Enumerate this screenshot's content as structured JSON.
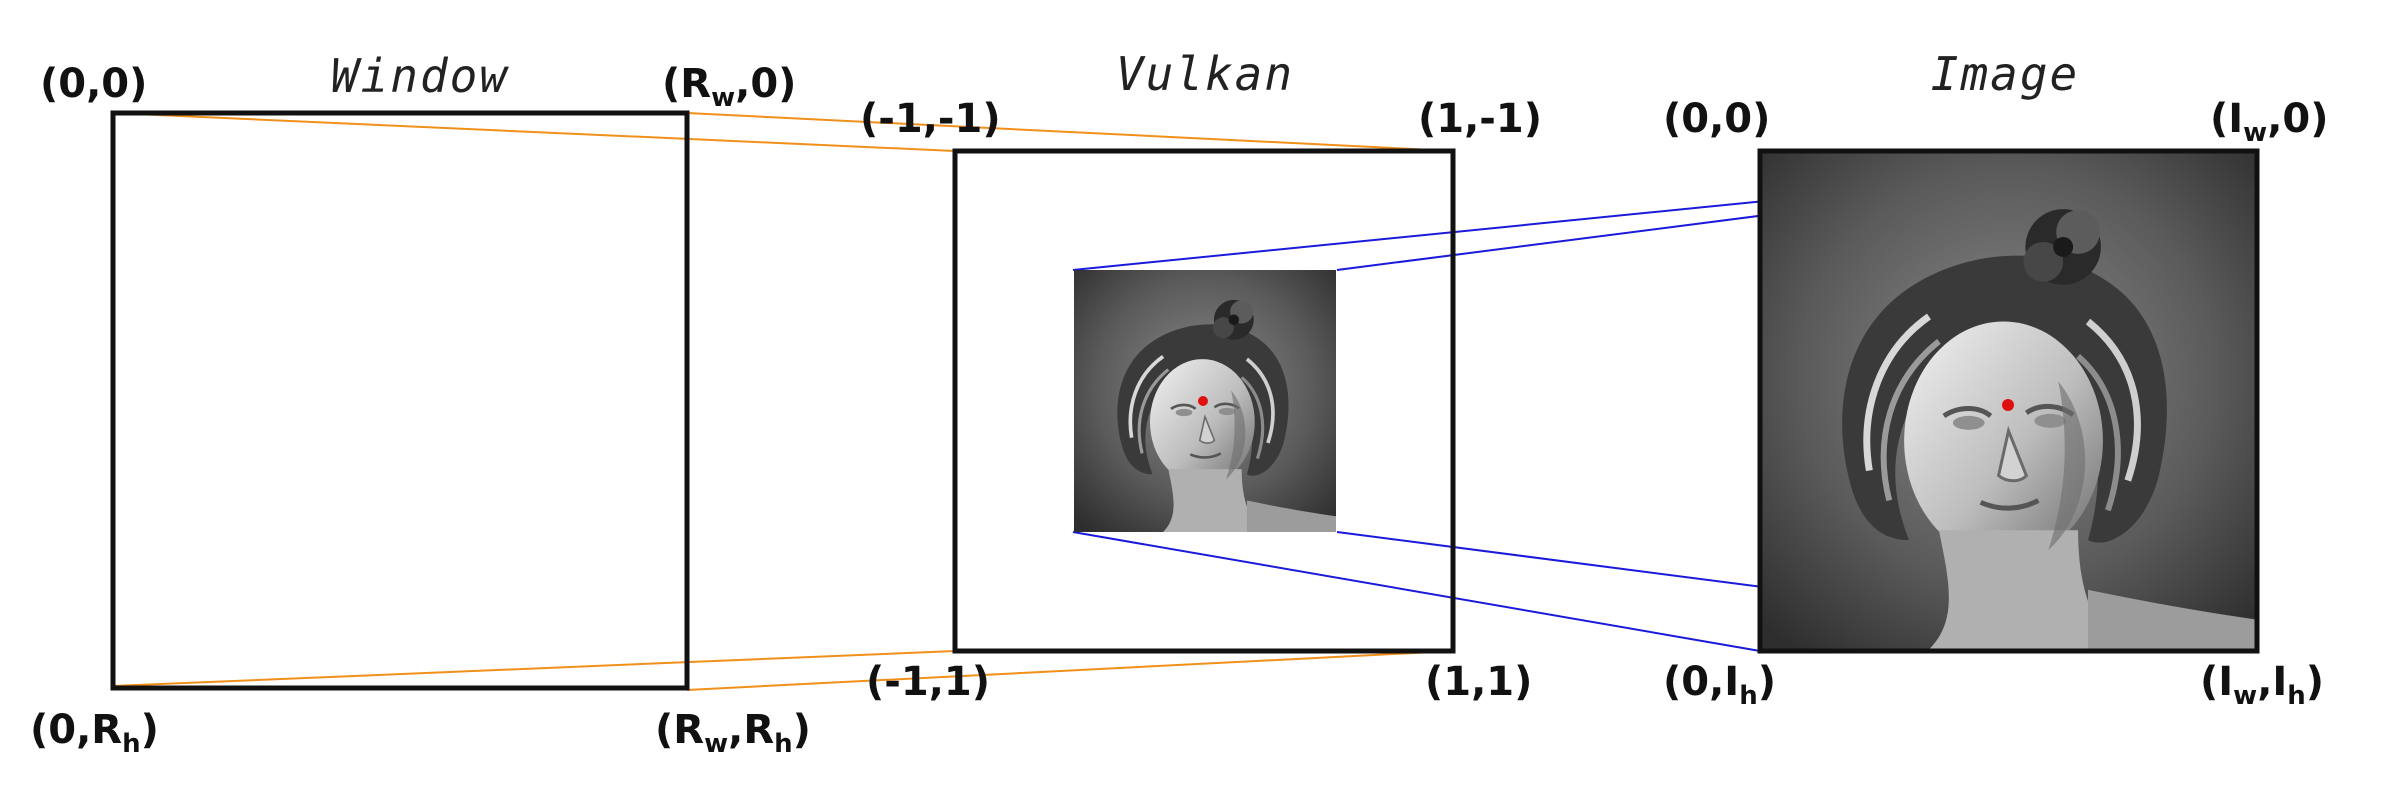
{
  "titles": {
    "window": "Window",
    "vulkan": "Vulkan",
    "image": "Image"
  },
  "window_labels": {
    "top_left": "(0,0)",
    "top_right": {
      "a": "(R",
      "b": "w",
      "c": ",0)"
    },
    "bottom_left": {
      "a": "(0,R",
      "b": "h",
      "c": ")"
    },
    "bottom_right": {
      "a": "(R",
      "b": "w",
      "c": ",R",
      "d": "h",
      "e": ")"
    }
  },
  "vulkan_labels": {
    "top_left": "(-1,-1)",
    "top_right": "(1,-1)",
    "bottom_left": "(-1,1)",
    "bottom_right": "(1,1)"
  },
  "image_labels": {
    "top_left": "(0,0)",
    "top_right": {
      "a": "(I",
      "b": "w",
      "c": ",0)"
    },
    "bottom_left": {
      "a": "(0,I",
      "b": "h",
      "c": ")"
    },
    "bottom_right": {
      "a": "(I",
      "b": "w",
      "c": ",I",
      "d": "h",
      "e": ")"
    }
  },
  "colors": {
    "window_to_vulkan": "#f0901a",
    "vulkan_to_image": "#1a1adc",
    "marker": "#e01010"
  }
}
